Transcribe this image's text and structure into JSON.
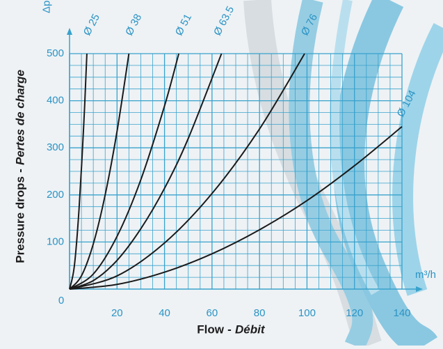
{
  "chart_data": {
    "type": "line",
    "y_label": "Pressure drops",
    "y_label_alt": "Pertes de charge",
    "x_label": "Flow",
    "x_label_alt": "Débit",
    "y_unit": "Δp mb",
    "x_unit": "m³/h",
    "xlim": [
      0,
      140
    ],
    "ylim": [
      0,
      500
    ],
    "xticks": [
      0,
      20,
      40,
      60,
      80,
      100,
      120,
      140
    ],
    "yticks": [
      100,
      200,
      300,
      400,
      500
    ],
    "grid": true,
    "grid_color": "#38a2cc",
    "series": [
      {
        "name": "Ø 25",
        "color": "#1a1a1a",
        "x": [
          0,
          2,
          4,
          6,
          7.3
        ],
        "values": [
          0,
          48,
          170,
          351,
          500
        ]
      },
      {
        "name": "Ø 38",
        "color": "#1a1a1a",
        "x": [
          0,
          5,
          10,
          15,
          20,
          25
        ],
        "values": [
          0,
          28,
          96,
          200,
          335,
          500
        ]
      },
      {
        "name": "Ø 51",
        "color": "#1a1a1a",
        "x": [
          0,
          10,
          20,
          30,
          40,
          46
        ],
        "values": [
          0,
          32,
          112,
          232,
          389,
          500
        ]
      },
      {
        "name": "Ø 63.5",
        "color": "#1a1a1a",
        "x": [
          0,
          10,
          20,
          30,
          40,
          50,
          64
        ],
        "values": [
          0,
          18,
          61,
          128,
          214,
          320,
          500
        ]
      },
      {
        "name": "Ø 76",
        "color": "#1a1a1a",
        "x": [
          0,
          20,
          40,
          60,
          80,
          99
        ],
        "values": [
          0,
          28,
          98,
          203,
          340,
          500
        ]
      },
      {
        "name": "Ø 104",
        "color": "#1a1a1a",
        "x": [
          0,
          20,
          40,
          60,
          80,
          100,
          120,
          140
        ],
        "values": [
          0,
          10,
          36,
          75,
          126,
          188,
          262,
          345
        ]
      }
    ]
  }
}
